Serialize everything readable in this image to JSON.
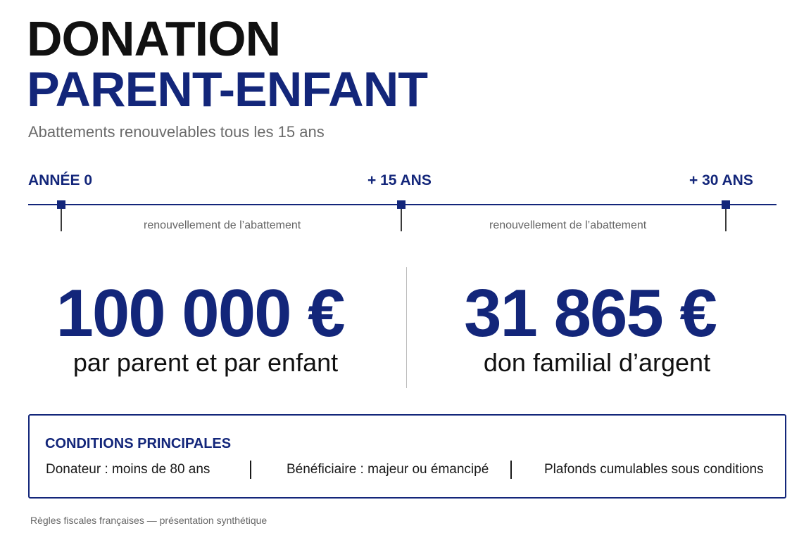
{
  "header": {
    "title_line_1": "DONATION",
    "title_line_2": "PARENT-ENFANT",
    "subtitle": "Abattements renouvelables tous les 15 ans"
  },
  "timeline": {
    "markers": [
      {
        "label": "ANNÉE 0"
      },
      {
        "label": "+ 15 ANS"
      },
      {
        "label": "+ 30 ANS"
      }
    ],
    "notes": [
      "renouvellement de l’abattement",
      "renouvellement de l’abattement"
    ]
  },
  "stats": [
    {
      "value": "100 000 €",
      "caption": "par parent et par enfant"
    },
    {
      "value": "31 865 €",
      "caption": "don familial d’argent"
    }
  ],
  "conditions": {
    "title": "CONDITIONS PRINCIPALES",
    "items": [
      "Donateur : moins de 80 ans",
      "Bénéficiaire : majeur ou émancipé",
      "Plafonds cumulables sous conditions"
    ]
  },
  "footer": {
    "text": "Règles fiscales françaises — présentation synthétique"
  },
  "colors": {
    "accent": "#13267a",
    "title_dark": "#111111",
    "muted_text": "#666666",
    "background": "#ffffff"
  }
}
